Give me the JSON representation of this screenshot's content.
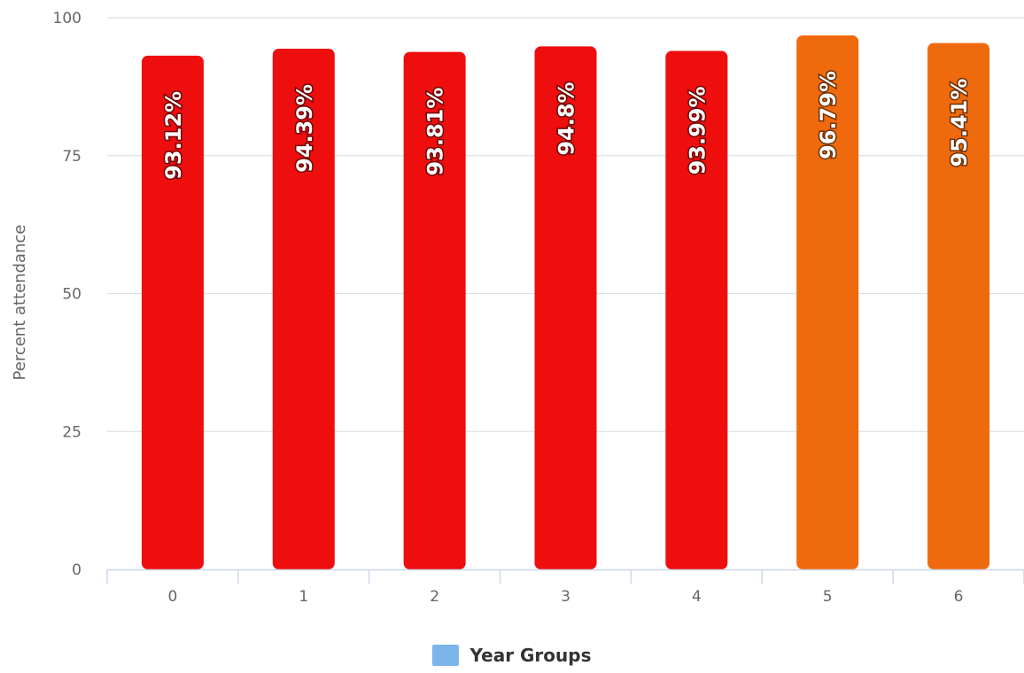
{
  "chart_data": {
    "type": "bar",
    "categories": [
      "0",
      "1",
      "2",
      "3",
      "4",
      "5",
      "6"
    ],
    "values": [
      93.12,
      94.39,
      93.81,
      94.8,
      93.99,
      96.79,
      95.41
    ],
    "data_labels": [
      "93.12%",
      "94.39%",
      "93.81%",
      "94.8%",
      "93.99%",
      "96.79%",
      "95.41%"
    ],
    "bar_colors": [
      "#ee0e0e",
      "#ee0e0e",
      "#ee0e0e",
      "#ee0e0e",
      "#ee0e0e",
      "#ef6a0d",
      "#ef6a0d"
    ],
    "ylabel": "Percent attendance",
    "xlabel": "",
    "ylim": [
      0,
      100
    ],
    "yticks": [
      0,
      25,
      50,
      75,
      100
    ],
    "grid": true,
    "legend": {
      "label": "Year Groups",
      "color": "#7cb5ec",
      "position": "bottom-center"
    }
  }
}
